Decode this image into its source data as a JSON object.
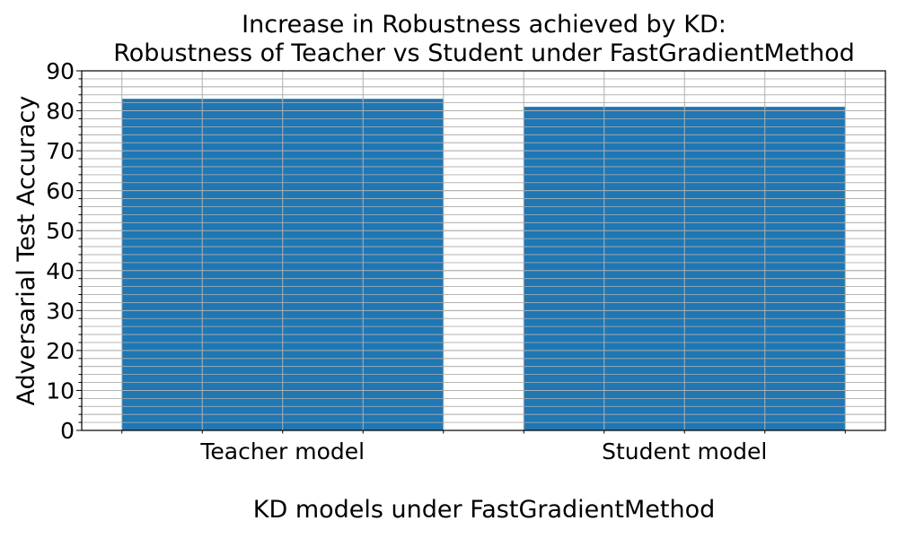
{
  "chart_data": {
    "type": "bar",
    "title": "Increase in Robustness achieved by KD:",
    "subtitle": "Robustness of Teacher vs Student under FastGradientMethod",
    "xlabel": "KD models under FastGradientMethod",
    "ylabel": "Adversarial Test Accuracy",
    "categories": [
      "Teacher model",
      "Student model"
    ],
    "values": [
      83,
      81
    ],
    "ylim": [
      0,
      90
    ],
    "yticks": [
      "0",
      "10",
      "20",
      "30",
      "40",
      "50",
      "60",
      "70",
      "80",
      "90"
    ],
    "grid": true,
    "bar_color": "#1f77b4",
    "grid_color": "#b0b0b0"
  }
}
